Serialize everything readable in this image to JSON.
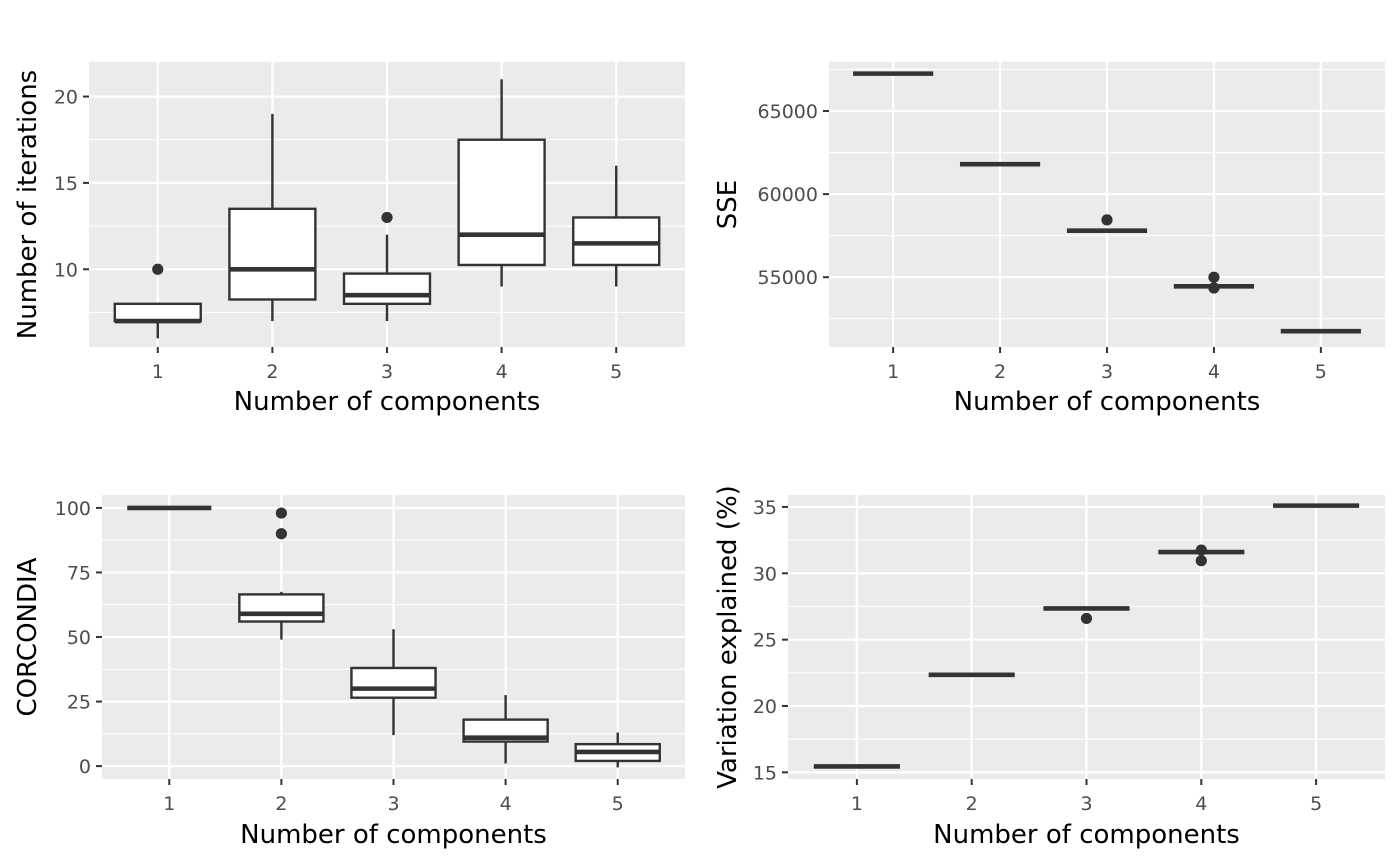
{
  "chart_data": [
    {
      "type": "box",
      "xlabel": "Number of components",
      "ylabel": "Number of iterations",
      "categories": [
        "1",
        "2",
        "3",
        "4",
        "5"
      ],
      "ylim": [
        5.5,
        22
      ],
      "yticks": [
        10,
        15,
        20
      ],
      "yticks_minor": [
        7.5,
        12.5,
        17.5
      ],
      "boxes": [
        {
          "q1": 7,
          "median": 7,
          "q3": 8,
          "whisker_low": 6,
          "whisker_high": 8,
          "outliers": [
            10
          ]
        },
        {
          "q1": 8.25,
          "median": 10,
          "q3": 13.5,
          "whisker_low": 7,
          "whisker_high": 19,
          "outliers": []
        },
        {
          "q1": 8,
          "median": 8.5,
          "q3": 9.75,
          "whisker_low": 7,
          "whisker_high": 12,
          "outliers": [
            13
          ]
        },
        {
          "q1": 10.25,
          "median": 12,
          "q3": 17.5,
          "whisker_low": 9,
          "whisker_high": 21,
          "outliers": []
        },
        {
          "q1": 10.25,
          "median": 11.5,
          "q3": 13,
          "whisker_low": 9,
          "whisker_high": 16,
          "outliers": []
        }
      ]
    },
    {
      "type": "box",
      "xlabel": "Number of components",
      "ylabel": "SSE",
      "categories": [
        "1",
        "2",
        "3",
        "4",
        "5"
      ],
      "ylim": [
        50800,
        67950
      ],
      "yticks": [
        55000,
        60000,
        65000
      ],
      "yticks_minor": [
        52500,
        57500,
        62500,
        67500
      ],
      "boxes": [
        {
          "q1": 67250,
          "median": 67250,
          "q3": 67250,
          "whisker_low": 67250,
          "whisker_high": 67250,
          "outliers": []
        },
        {
          "q1": 61800,
          "median": 61800,
          "q3": 61800,
          "whisker_low": 61800,
          "whisker_high": 61800,
          "outliers": []
        },
        {
          "q1": 57800,
          "median": 57800,
          "q3": 57800,
          "whisker_low": 57800,
          "whisker_high": 57800,
          "outliers": [
            58450
          ]
        },
        {
          "q1": 54450,
          "median": 54450,
          "q3": 54450,
          "whisker_low": 54450,
          "whisker_high": 54450,
          "outliers": [
            55000,
            54350
          ]
        },
        {
          "q1": 51750,
          "median": 51750,
          "q3": 51750,
          "whisker_low": 51750,
          "whisker_high": 51750,
          "outliers": []
        }
      ]
    },
    {
      "type": "box",
      "xlabel": "Number of components",
      "ylabel": "CORCONDIA",
      "categories": [
        "1",
        "2",
        "3",
        "4",
        "5"
      ],
      "ylim": [
        -5,
        105
      ],
      "yticks": [
        0,
        25,
        50,
        75,
        100
      ],
      "yticks_minor": [
        12.5,
        37.5,
        62.5,
        87.5
      ],
      "boxes": [
        {
          "q1": 100,
          "median": 100,
          "q3": 100,
          "whisker_low": 100,
          "whisker_high": 100,
          "outliers": []
        },
        {
          "q1": 56,
          "median": 59,
          "q3": 66.5,
          "whisker_low": 49,
          "whisker_high": 67.5,
          "outliers": [
            98,
            90
          ]
        },
        {
          "q1": 26.5,
          "median": 30,
          "q3": 38,
          "whisker_low": 12,
          "whisker_high": 53,
          "outliers": []
        },
        {
          "q1": 9.5,
          "median": 11,
          "q3": 18,
          "whisker_low": 1,
          "whisker_high": 27.5,
          "outliers": []
        },
        {
          "q1": 2,
          "median": 5.5,
          "q3": 8.5,
          "whisker_low": -0.5,
          "whisker_high": 13,
          "outliers": []
        }
      ]
    },
    {
      "type": "box",
      "xlabel": "Number of components",
      "ylabel": "Variation explained (%)",
      "categories": [
        "1",
        "2",
        "3",
        "4",
        "5"
      ],
      "ylim": [
        14.5,
        35.9
      ],
      "yticks": [
        15,
        20,
        25,
        30,
        35
      ],
      "yticks_minor": [
        17.5,
        22.5,
        27.5,
        32.5
      ],
      "boxes": [
        {
          "q1": 15.45,
          "median": 15.45,
          "q3": 15.45,
          "whisker_low": 15.45,
          "whisker_high": 15.45,
          "outliers": []
        },
        {
          "q1": 22.35,
          "median": 22.35,
          "q3": 22.35,
          "whisker_low": 22.35,
          "whisker_high": 22.35,
          "outliers": []
        },
        {
          "q1": 27.35,
          "median": 27.35,
          "q3": 27.35,
          "whisker_low": 27.35,
          "whisker_high": 27.35,
          "outliers": [
            26.6
          ]
        },
        {
          "q1": 31.6,
          "median": 31.6,
          "q3": 31.6,
          "whisker_low": 31.6,
          "whisker_high": 31.6,
          "outliers": [
            31.75,
            30.95
          ]
        },
        {
          "q1": 35.1,
          "median": 35.1,
          "q3": 35.1,
          "whisker_low": 35.1,
          "whisker_high": 35.1,
          "outliers": []
        }
      ]
    }
  ]
}
